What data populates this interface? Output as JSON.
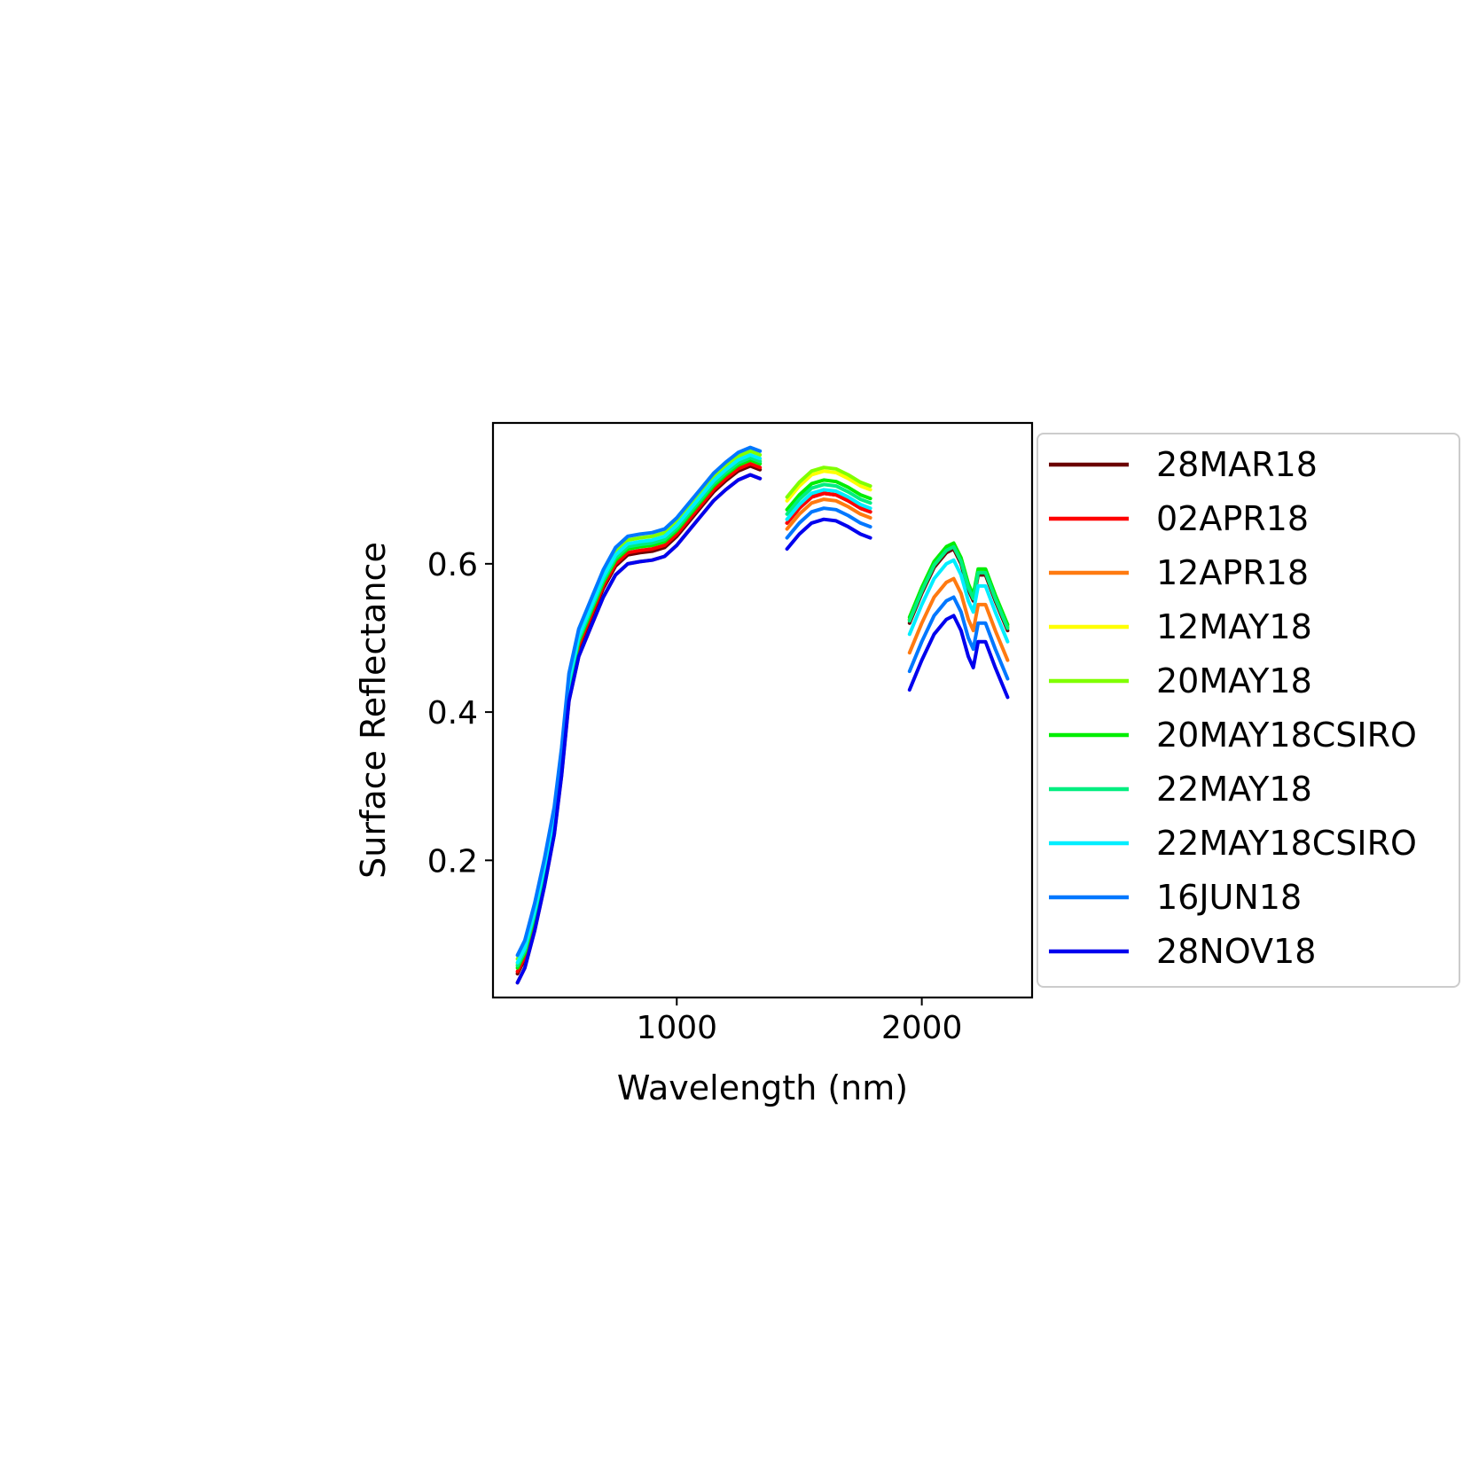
{
  "chart_data": {
    "type": "line",
    "title": "",
    "xlabel": "Wavelength (nm)",
    "ylabel": "Surface Reflectance",
    "xlim": [
      250,
      2450
    ],
    "ylim": [
      0.015,
      0.79
    ],
    "xticks": [
      1000,
      2000
    ],
    "xtick_labels": [
      "1000",
      "2000"
    ],
    "yticks": [
      0.2,
      0.4,
      0.6
    ],
    "ytick_labels": [
      "0.2",
      "0.4",
      "0.6"
    ],
    "grid": false,
    "legend_position": "outside-right",
    "segments": [
      {
        "x": [
          350,
          380,
          420,
          460,
          500,
          530,
          560,
          600,
          650,
          700,
          750,
          800,
          850,
          900,
          950,
          1000,
          1050,
          1100,
          1150,
          1200,
          1250,
          1300,
          1340
        ],
        "base": [
          0.05,
          0.07,
          0.12,
          0.18,
          0.25,
          0.33,
          0.43,
          0.49,
          0.53,
          0.57,
          0.6,
          0.615,
          0.618,
          0.62,
          0.625,
          0.64,
          0.66,
          0.68,
          0.7,
          0.715,
          0.728,
          0.735,
          0.73
        ]
      },
      {
        "x": [
          1450,
          1500,
          1550,
          1600,
          1650,
          1700,
          1750,
          1790
        ],
        "base": [
          0.655,
          0.675,
          0.69,
          0.695,
          0.693,
          0.685,
          0.675,
          0.67
        ]
      },
      {
        "x": [
          1950,
          2000,
          2050,
          2100,
          2130,
          2160,
          2190,
          2210,
          2230,
          2260,
          2300,
          2350
        ],
        "base": [
          0.52,
          0.56,
          0.595,
          0.615,
          0.62,
          0.6,
          0.565,
          0.55,
          0.585,
          0.585,
          0.55,
          0.51
        ]
      }
    ],
    "series": [
      {
        "name": "28MAR18",
        "color": "#6b0000",
        "offsets": [
          -0.003,
          0.0,
          0.0
        ]
      },
      {
        "name": "02APR18",
        "color": "#ff0000",
        "offsets": [
          0.0,
          0.0,
          0.005
        ]
      },
      {
        "name": "12APR18",
        "color": "#ff7a10",
        "offsets": [
          -0.015,
          -0.008,
          -0.04
        ]
      },
      {
        "name": "12MAY18",
        "color": "#ffff00",
        "offsets": [
          0.01,
          0.03,
          0.005
        ]
      },
      {
        "name": "20MAY18",
        "color": "#80ff00",
        "offsets": [
          0.017,
          0.035,
          0.005
        ]
      },
      {
        "name": "20MAY18CSIRO",
        "color": "#00ee00",
        "offsets": [
          0.005,
          0.018,
          0.008
        ]
      },
      {
        "name": "22MAY18",
        "color": "#00ee80",
        "offsets": [
          0.008,
          0.012,
          0.003
        ]
      },
      {
        "name": "22MAY18CSIRO",
        "color": "#00eeff",
        "offsets": [
          0.012,
          0.005,
          -0.015
        ]
      },
      {
        "name": "16JUN18",
        "color": "#0077ff",
        "offsets": [
          0.022,
          -0.02,
          -0.065
        ]
      },
      {
        "name": "28NOV18",
        "color": "#0000ee",
        "offsets": [
          -0.015,
          -0.035,
          -0.09
        ]
      }
    ]
  }
}
